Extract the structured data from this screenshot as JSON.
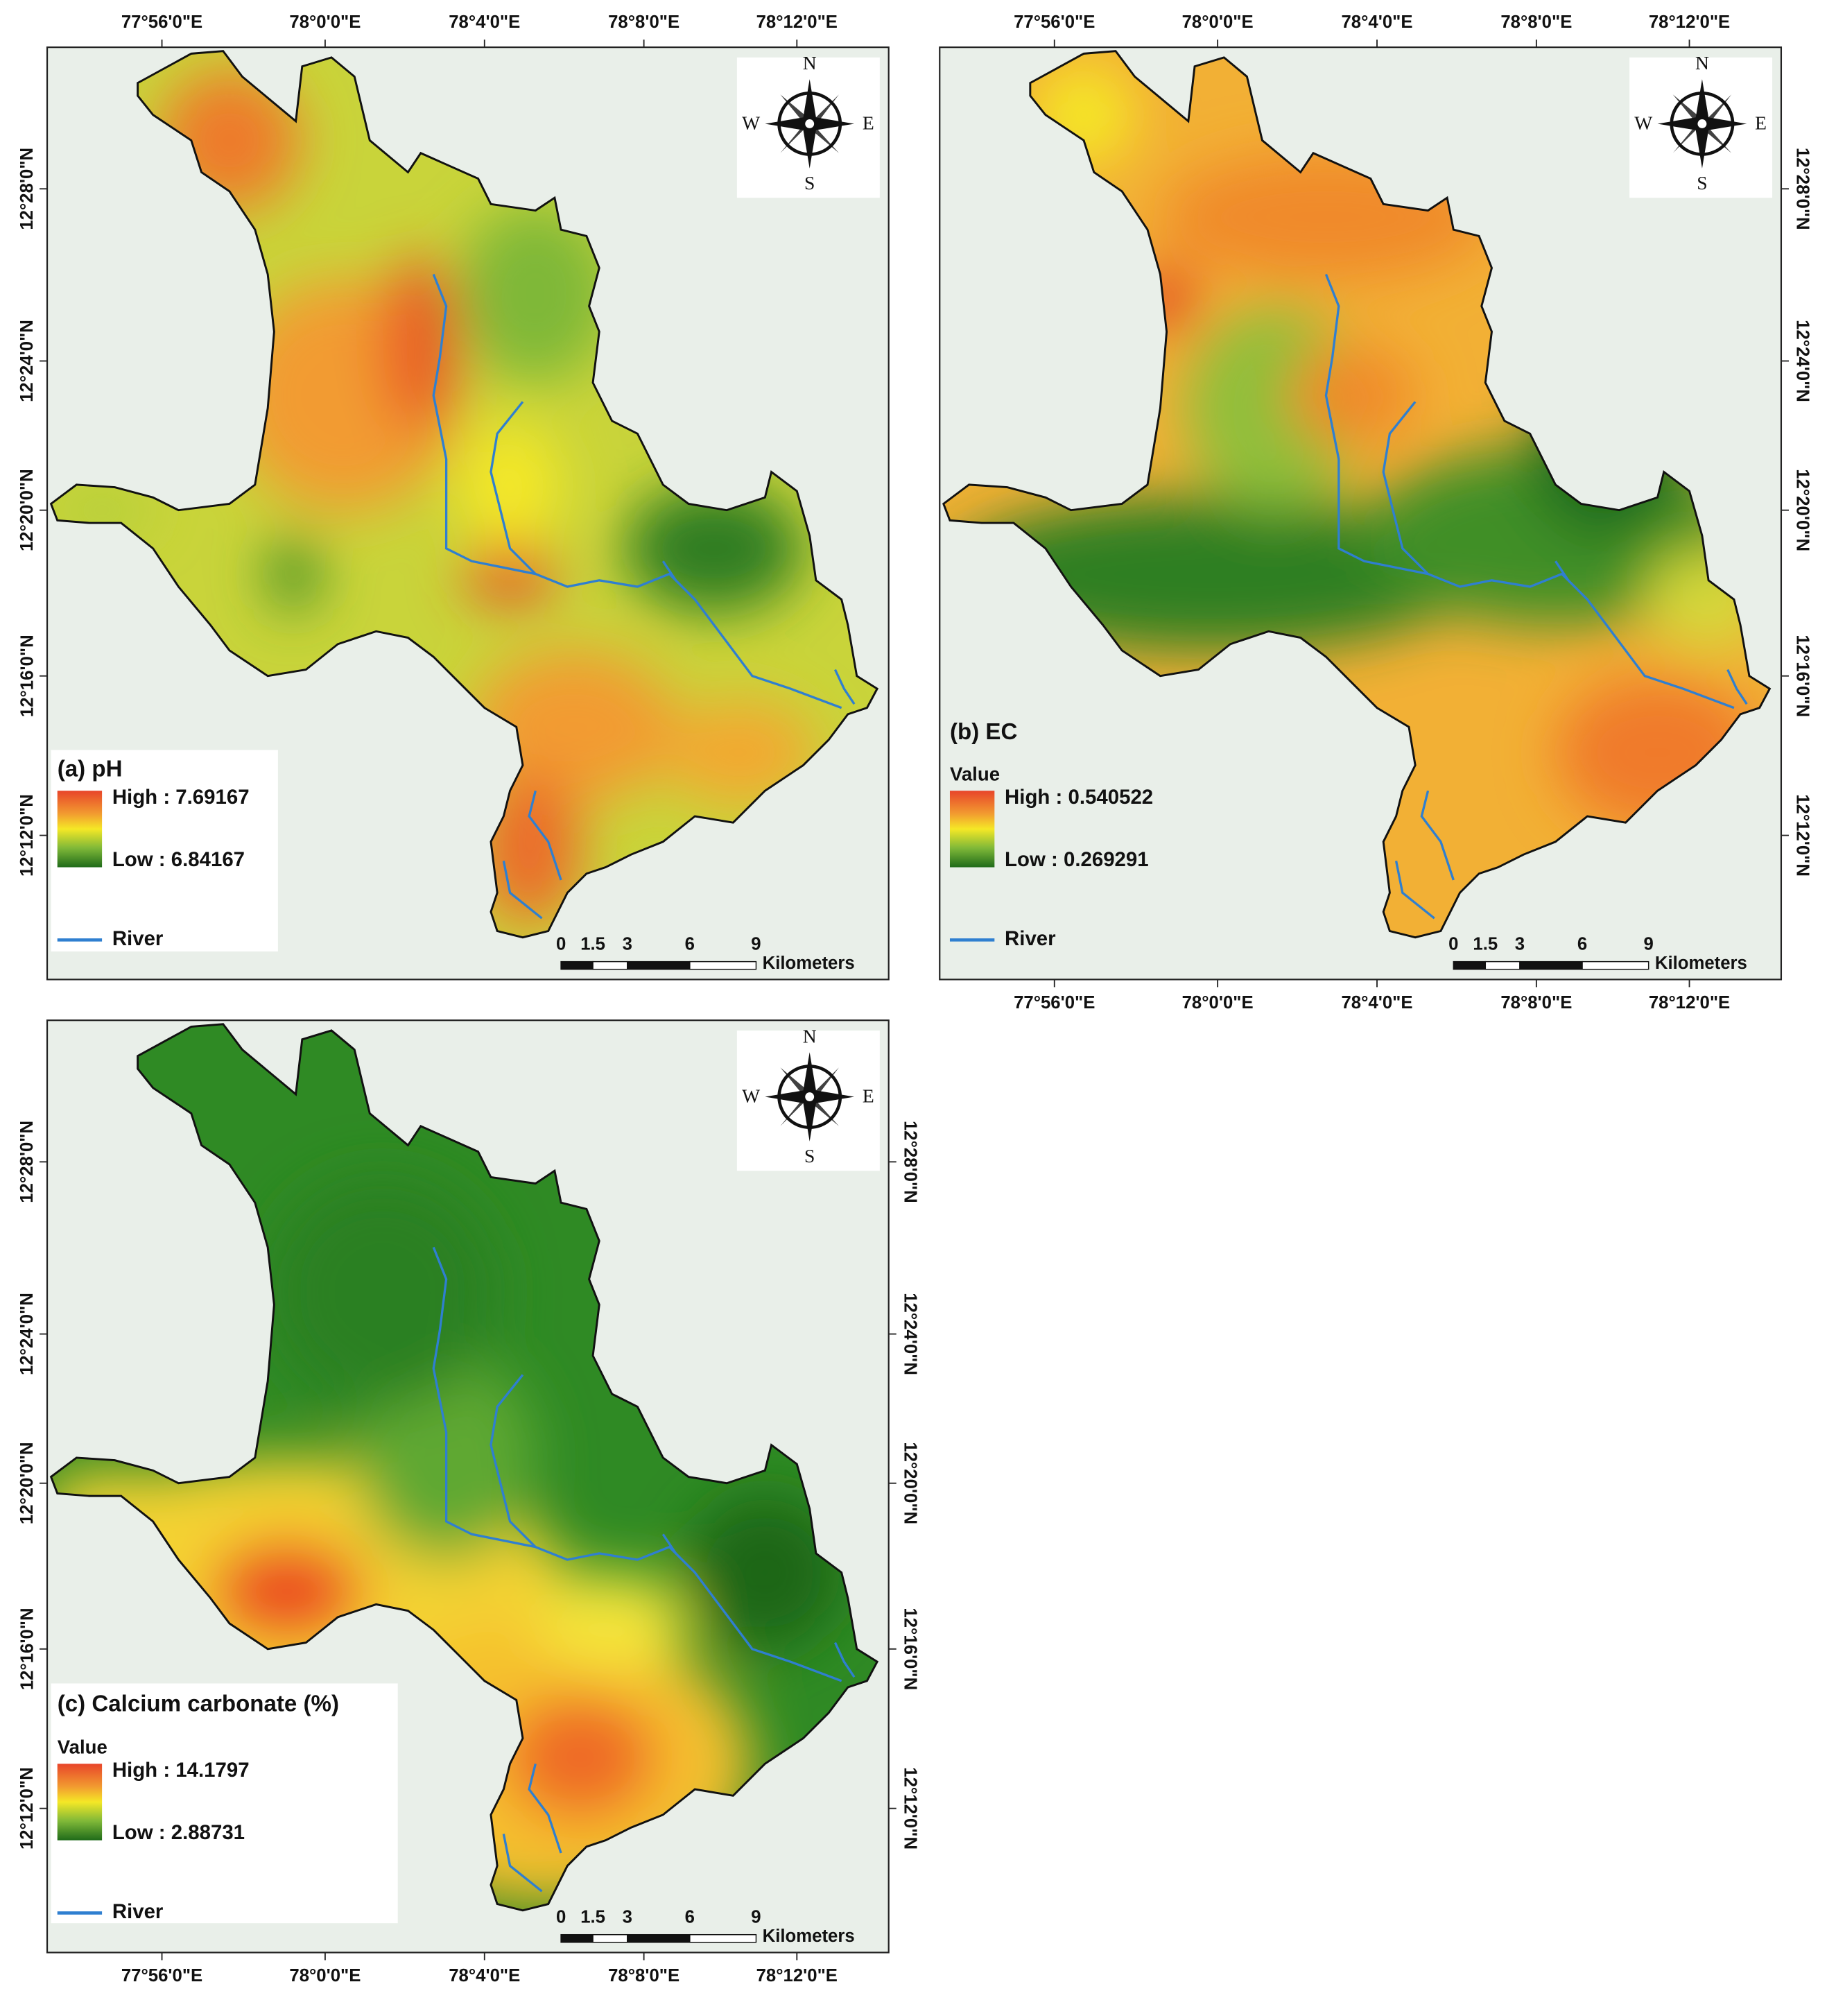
{
  "longitude_labels": [
    "77°56'0\"E",
    "78°0'0\"E",
    "78°4'0\"E",
    "78°8'0\"E",
    "78°12'0\"E"
  ],
  "latitude_labels": [
    "12°28'0\"N",
    "12°24'0\"N",
    "12°20'0\"N",
    "12°16'0\"N",
    "12°12'0\"N"
  ],
  "compass": {
    "north": "N",
    "south": "S",
    "east": "E",
    "west": "W"
  },
  "scale_bar": {
    "ticks": [
      0,
      1.5,
      3,
      6,
      9
    ],
    "unit": "Kilometers"
  },
  "legend": {
    "value_heading": "Value",
    "river": "River"
  },
  "panels": [
    {
      "title": "(a) pH",
      "high": "High : 7.69167",
      "low": "Low : 6.84167"
    },
    {
      "title": "(b) EC",
      "high": "High : 0.540522",
      "low": "Low : 0.269291"
    },
    {
      "title": "(c) Calcium carbonate (%)",
      "high": "High : 14.1797",
      "low": "Low : 2.88731"
    }
  ]
}
